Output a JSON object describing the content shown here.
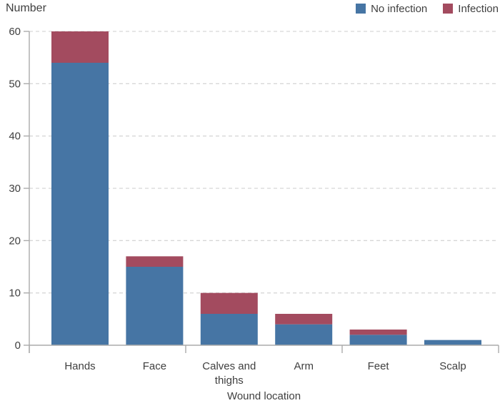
{
  "chart": {
    "y_axis_title": "Number",
    "x_axis_title": "Wound location"
  },
  "legend": [
    {
      "label": "No infection",
      "color": "#4675A4"
    },
    {
      "label": "Infection",
      "color": "#A34B5F"
    }
  ],
  "chart_data": {
    "type": "bar",
    "stacked": true,
    "title": "Number",
    "xlabel": "Wound location",
    "ylabel": "Number",
    "categories": [
      "Hands",
      "Face",
      "Calves and thighs",
      "Arm",
      "Feet",
      "Scalp"
    ],
    "series": [
      {
        "name": "No infection",
        "color": "#4675A4",
        "values": [
          54,
          15,
          6,
          4,
          2,
          1
        ]
      },
      {
        "name": "Infection",
        "color": "#A34B5F",
        "values": [
          6,
          2,
          4,
          2,
          1,
          0
        ]
      }
    ],
    "totals": [
      60,
      17,
      10,
      6,
      3,
      1
    ],
    "ylim": [
      0,
      60
    ],
    "yticks": [
      0,
      10,
      20,
      30,
      40,
      50,
      60
    ],
    "grid": "horizontal-dashed",
    "legend_position": "top-right"
  },
  "colors": {
    "bar_blue": "#4675A4",
    "bar_red": "#A34B5F",
    "text": "#3F3F3F",
    "axis": "#ABABAB",
    "gridline": "#D7D7D7",
    "background": "#FFFFFF"
  }
}
